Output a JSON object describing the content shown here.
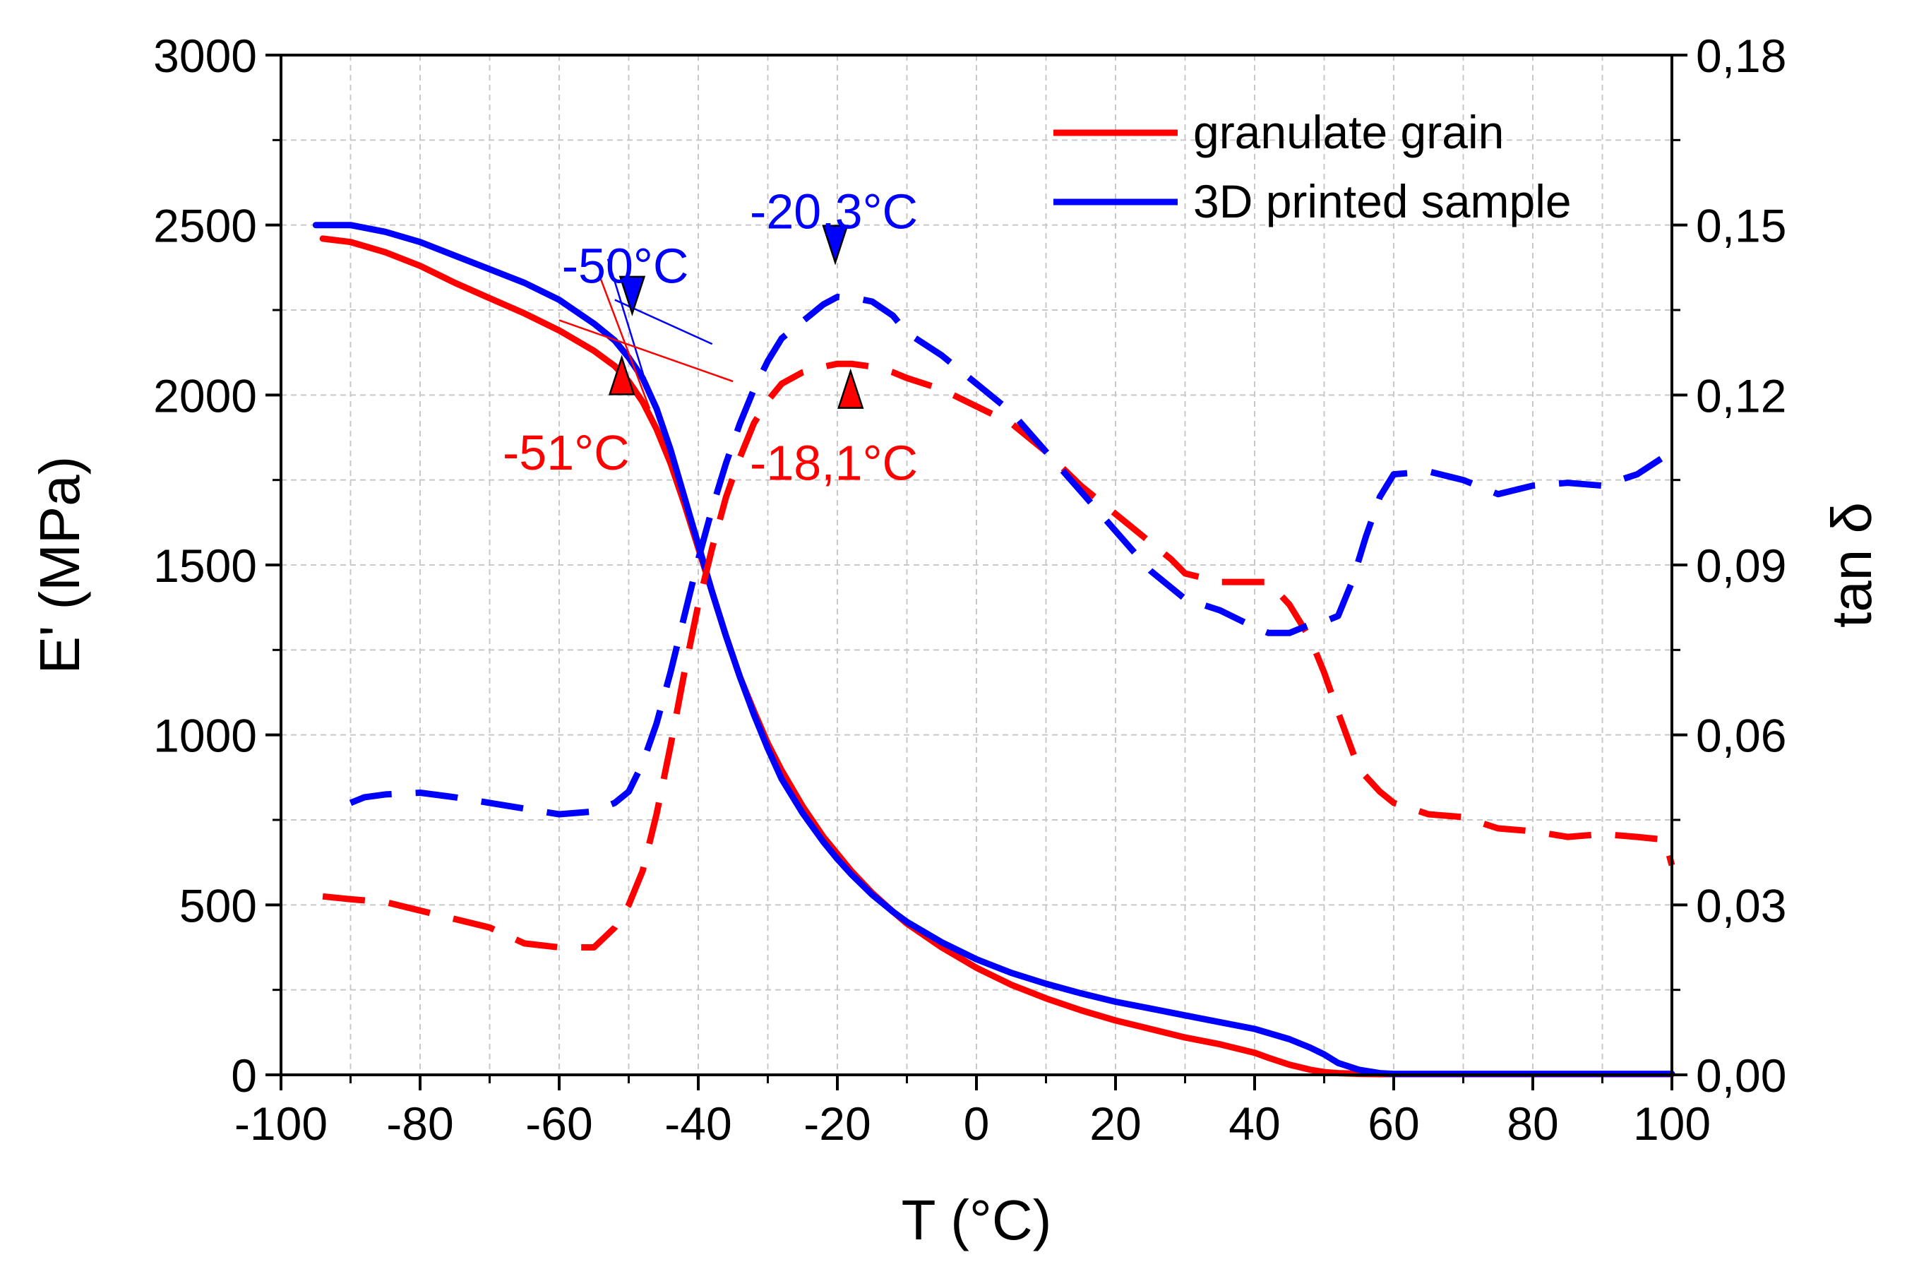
{
  "chart_data": {
    "type": "line",
    "title": "",
    "xlabel": "T (°C)",
    "ylabel": "E' (MPa)",
    "y2label": "tan δ",
    "xlim": [
      -100,
      100
    ],
    "ylim": [
      0,
      3000
    ],
    "y2lim": [
      0,
      0.18
    ],
    "xticks": [
      -100,
      -80,
      -60,
      -40,
      -20,
      0,
      20,
      40,
      60,
      80,
      100
    ],
    "xtick_labels": [
      "-100",
      "-80",
      "-60",
      "-40",
      "-20",
      "0",
      "20",
      "40",
      "60",
      "80",
      "100"
    ],
    "yticks": [
      0,
      500,
      1000,
      1500,
      2000,
      2500,
      3000
    ],
    "ytick_labels": [
      "0",
      "500",
      "1000",
      "1500",
      "2000",
      "2500",
      "3000"
    ],
    "y2ticks": [
      0,
      0.03,
      0.06,
      0.09,
      0.12,
      0.15,
      0.18
    ],
    "y2tick_labels": [
      "0,00",
      "0,03",
      "0,06",
      "0,09",
      "0,12",
      "0,15",
      "0,18"
    ],
    "grid": true,
    "legend": {
      "position": "top-right",
      "entries": [
        {
          "label": "granulate grain",
          "color": "#ff0000"
        },
        {
          "label": "3D printed sample",
          "color": "#0000ff"
        }
      ]
    },
    "series": [
      {
        "name": "granulate grain E'",
        "color": "#ff0000",
        "style": "solid",
        "axis": "left",
        "x": [
          -94,
          -90,
          -85,
          -80,
          -75,
          -70,
          -65,
          -60,
          -55,
          -52,
          -50,
          -48,
          -46,
          -44,
          -42,
          -40,
          -38,
          -36,
          -34,
          -32,
          -30,
          -28,
          -25,
          -22,
          -20,
          -18,
          -15,
          -12,
          -10,
          -5,
          0,
          5,
          10,
          15,
          20,
          25,
          30,
          35,
          40,
          42,
          45,
          48,
          50,
          52,
          55,
          58,
          60,
          70,
          80,
          90,
          100
        ],
        "y": [
          2460,
          2450,
          2420,
          2380,
          2330,
          2285,
          2240,
          2190,
          2130,
          2085,
          2040,
          1980,
          1900,
          1800,
          1680,
          1550,
          1420,
          1290,
          1170,
          1070,
          975,
          895,
          790,
          700,
          650,
          600,
          535,
          480,
          445,
          375,
          315,
          265,
          225,
          190,
          160,
          135,
          110,
          90,
          65,
          50,
          30,
          15,
          8,
          5,
          3,
          2,
          2,
          2,
          2,
          2,
          2
        ]
      },
      {
        "name": "3D printed sample E'",
        "color": "#0000ff",
        "style": "solid",
        "axis": "left",
        "x": [
          -95,
          -90,
          -85,
          -80,
          -75,
          -70,
          -65,
          -60,
          -55,
          -52,
          -50,
          -48,
          -46,
          -44,
          -42,
          -40,
          -38,
          -36,
          -34,
          -32,
          -30,
          -28,
          -25,
          -22,
          -20,
          -18,
          -15,
          -12,
          -10,
          -5,
          0,
          5,
          10,
          15,
          20,
          25,
          30,
          35,
          40,
          45,
          48,
          50,
          52,
          55,
          58,
          60,
          70,
          80,
          90,
          100
        ],
        "y": [
          2500,
          2500,
          2480,
          2450,
          2410,
          2370,
          2330,
          2280,
          2210,
          2160,
          2110,
          2050,
          1960,
          1840,
          1700,
          1560,
          1420,
          1290,
          1170,
          1060,
          960,
          870,
          770,
          685,
          635,
          590,
          530,
          480,
          450,
          390,
          340,
          300,
          268,
          240,
          215,
          195,
          175,
          155,
          135,
          105,
          80,
          60,
          35,
          15,
          5,
          3,
          3,
          3,
          3,
          3
        ]
      },
      {
        "name": "granulate grain tan δ",
        "color": "#ff0000",
        "style": "dashed",
        "axis": "right",
        "x": [
          -94,
          -90,
          -85,
          -80,
          -75,
          -70,
          -65,
          -60,
          -55,
          -52,
          -50,
          -48,
          -46,
          -44,
          -42,
          -40,
          -38,
          -36,
          -34,
          -32,
          -30,
          -28,
          -25,
          -22,
          -20,
          -18,
          -15,
          -12,
          -10,
          -5,
          0,
          5,
          10,
          15,
          20,
          25,
          28,
          30,
          35,
          40,
          42,
          45,
          48,
          50,
          52,
          55,
          58,
          60,
          65,
          70,
          75,
          80,
          85,
          90,
          95,
          99,
          100
        ],
        "y": [
          0.0315,
          0.031,
          0.0305,
          0.029,
          0.0275,
          0.026,
          0.0232,
          0.0225,
          0.0225,
          0.026,
          0.03,
          0.036,
          0.046,
          0.058,
          0.071,
          0.083,
          0.093,
          0.102,
          0.109,
          0.115,
          0.119,
          0.122,
          0.124,
          0.125,
          0.1255,
          0.1255,
          0.125,
          0.124,
          0.123,
          0.121,
          0.118,
          0.115,
          0.11,
          0.104,
          0.099,
          0.094,
          0.091,
          0.0885,
          0.087,
          0.087,
          0.087,
          0.083,
          0.077,
          0.071,
          0.064,
          0.054,
          0.05,
          0.048,
          0.046,
          0.0455,
          0.0435,
          0.043,
          0.042,
          0.0425,
          0.042,
          0.0415,
          0.037
        ]
      },
      {
        "name": "3D printed sample tan δ",
        "color": "#0000ff",
        "style": "dashed",
        "axis": "right",
        "x": [
          -90,
          -88,
          -85,
          -80,
          -75,
          -70,
          -65,
          -60,
          -55,
          -52,
          -50,
          -48,
          -46,
          -44,
          -42,
          -40,
          -38,
          -36,
          -34,
          -32,
          -30,
          -28,
          -25,
          -22,
          -20,
          -17,
          -15,
          -12,
          -10,
          -5,
          0,
          5,
          10,
          15,
          20,
          25,
          28,
          30,
          35,
          40,
          42,
          45,
          48,
          50,
          52,
          54,
          56,
          58,
          60,
          65,
          70,
          75,
          80,
          85,
          90,
          95,
          100
        ],
        "y": [
          0.048,
          0.049,
          0.0495,
          0.0498,
          0.049,
          0.048,
          0.047,
          0.046,
          0.0465,
          0.048,
          0.05,
          0.055,
          0.062,
          0.071,
          0.081,
          0.091,
          0.1,
          0.108,
          0.115,
          0.121,
          0.126,
          0.13,
          0.133,
          0.136,
          0.1373,
          0.137,
          0.1365,
          0.134,
          0.131,
          0.127,
          0.122,
          0.117,
          0.11,
          0.103,
          0.096,
          0.089,
          0.086,
          0.084,
          0.082,
          0.079,
          0.078,
          0.078,
          0.0795,
          0.08,
          0.081,
          0.087,
          0.095,
          0.102,
          0.106,
          0.1065,
          0.105,
          0.1025,
          0.104,
          0.1045,
          0.104,
          0.106,
          0.11
        ]
      }
    ],
    "annotations": [
      {
        "text": "-50°C",
        "color": "#0000ff",
        "x": -50
      },
      {
        "text": "-20,3°C",
        "color": "#0000ff",
        "x": -20.3
      },
      {
        "text": "-51°C",
        "color": "#ff0000",
        "x": -51
      },
      {
        "text": "-18,1°C",
        "color": "#ff0000",
        "x": -18.1
      }
    ]
  }
}
